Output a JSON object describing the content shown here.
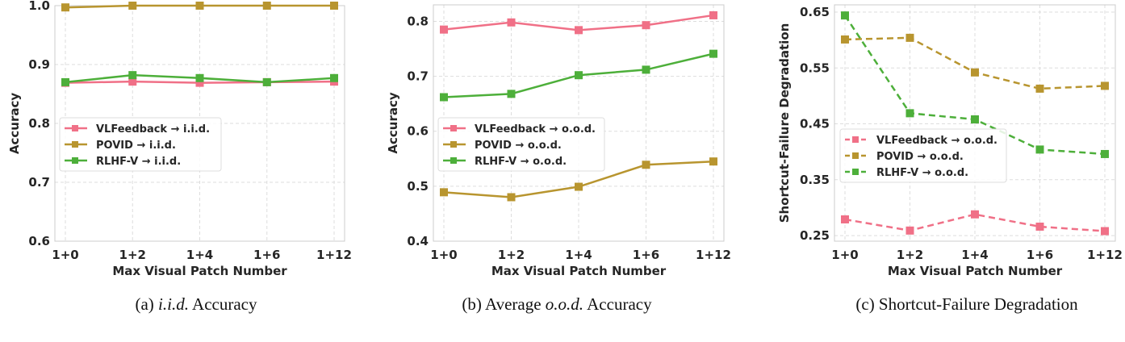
{
  "colors": {
    "VLFeedback": "#f07087",
    "POVID": "#b8952f",
    "RLHF-V": "#4daf3a"
  },
  "chart_data": [
    {
      "type": "line",
      "caption_prefix": "(a) ",
      "caption_italic": "i.i.d.",
      "caption_suffix": " Accuracy",
      "xlabel": "Max Visual Patch Number",
      "ylabel": "Accuracy",
      "categories": [
        "1+0",
        "1+2",
        "1+4",
        "1+6",
        "1+12"
      ],
      "ylim": [
        0.6,
        1.0
      ],
      "yticks": [
        0.6,
        0.7,
        0.8,
        0.9,
        1.0
      ],
      "ytick_labels": [
        "0.6",
        "0.7",
        "0.8",
        "0.9",
        "1.0"
      ],
      "grid": true,
      "legend": "center-left",
      "dashed": false,
      "series": [
        {
          "name": "VLFeedback → i.i.d.",
          "key": "VLFeedback",
          "values": [
            0.869,
            0.871,
            0.869,
            0.87,
            0.871
          ]
        },
        {
          "name": "POVID → i.i.d.",
          "key": "POVID",
          "values": [
            0.997,
            1.0,
            1.0,
            1.0,
            1.0
          ]
        },
        {
          "name": "RLHF-V → i.i.d.",
          "key": "RLHF-V",
          "values": [
            0.87,
            0.882,
            0.877,
            0.87,
            0.877
          ]
        }
      ]
    },
    {
      "type": "line",
      "caption_prefix": "(b) Average ",
      "caption_italic": "o.o.d.",
      "caption_suffix": " Accuracy",
      "xlabel": "Max Visual Patch Number",
      "ylabel": "Accuracy",
      "categories": [
        "1+0",
        "1+2",
        "1+4",
        "1+6",
        "1+12"
      ],
      "ylim": [
        0.4,
        0.83
      ],
      "yticks": [
        0.4,
        0.5,
        0.6,
        0.7,
        0.8
      ],
      "ytick_labels": [
        "0.4",
        "0.5",
        "0.6",
        "0.7",
        "0.8"
      ],
      "grid": true,
      "legend": "center-left",
      "dashed": false,
      "series": [
        {
          "name": "VLFeedback → o.o.d.",
          "key": "VLFeedback",
          "values": [
            0.785,
            0.798,
            0.784,
            0.793,
            0.811
          ]
        },
        {
          "name": "POVID → o.o.d.",
          "key": "POVID",
          "values": [
            0.489,
            0.48,
            0.499,
            0.539,
            0.545
          ]
        },
        {
          "name": "RLHF-V → o.o.d.",
          "key": "RLHF-V",
          "values": [
            0.662,
            0.668,
            0.702,
            0.712,
            0.741
          ]
        }
      ]
    },
    {
      "type": "line",
      "caption_prefix": "(c) Shortcut-Failure Degradation",
      "caption_italic": "",
      "caption_suffix": "",
      "xlabel": "Max Visual Patch Number",
      "ylabel": "Shortcut-Failure Degradation",
      "categories": [
        "1+0",
        "1+2",
        "1+4",
        "1+6",
        "1+12"
      ],
      "ylim": [
        0.24,
        0.663
      ],
      "yticks": [
        0.25,
        0.35,
        0.45,
        0.55,
        0.65
      ],
      "ytick_labels": [
        "0.25",
        "0.35",
        "0.45",
        "0.55",
        "0.65"
      ],
      "grid": true,
      "legend": "center-left",
      "dashed": true,
      "series": [
        {
          "name": "VLFeedback → o.o.d.",
          "key": "VLFeedback",
          "values": [
            0.279,
            0.259,
            0.288,
            0.266,
            0.258
          ]
        },
        {
          "name": "POVID → o.o.d.",
          "key": "POVID",
          "values": [
            0.601,
            0.604,
            0.542,
            0.513,
            0.518
          ]
        },
        {
          "name": "RLHF-V → o.o.d.",
          "key": "RLHF-V",
          "values": [
            0.644,
            0.469,
            0.458,
            0.404,
            0.396
          ]
        }
      ]
    }
  ]
}
